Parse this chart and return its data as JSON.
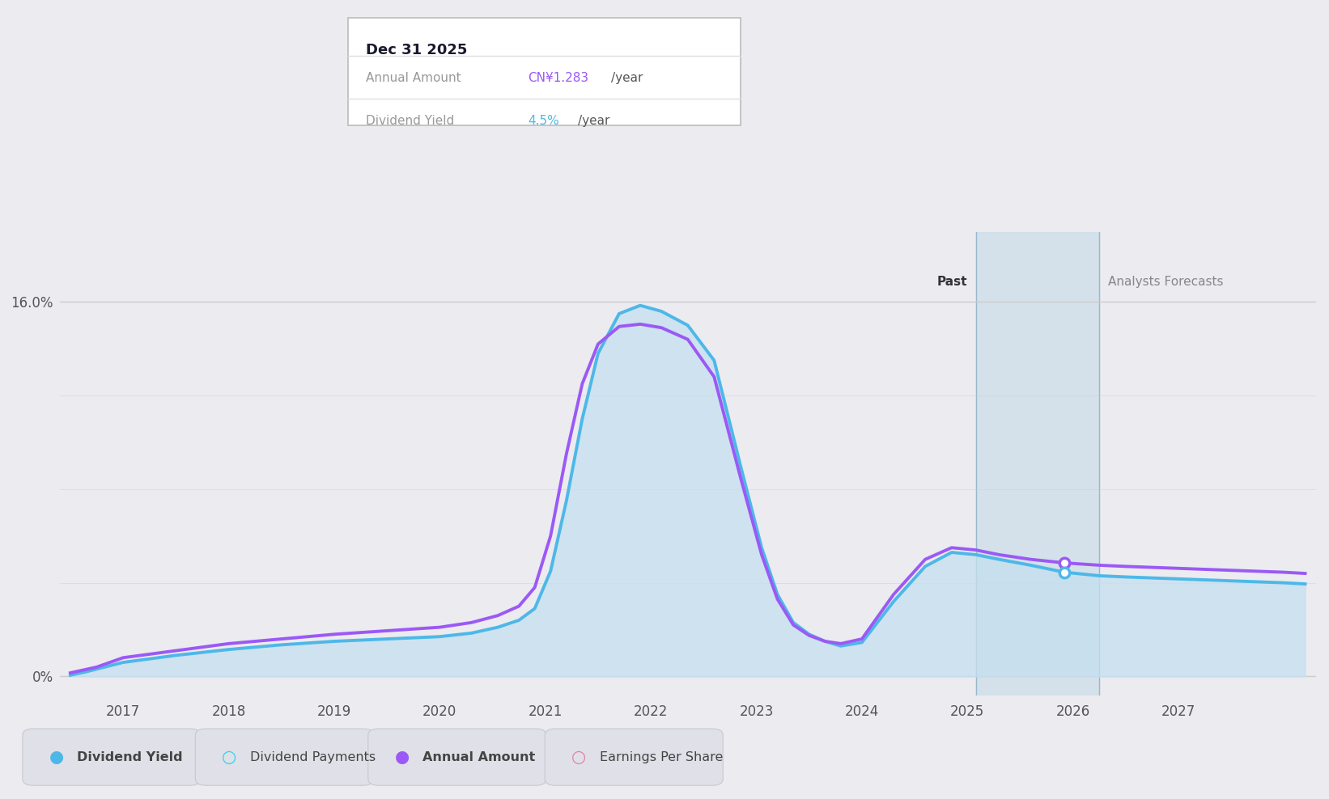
{
  "background_color": "#ebebf0",
  "plot_bg_color": "#ebebf0",
  "ytick_labels": [
    "0%",
    "16.0%"
  ],
  "xlim": [
    2016.4,
    2028.3
  ],
  "ylim": [
    -0.8,
    19.0
  ],
  "y_zero": 0.0,
  "y_top": 16.0,
  "forecast_region_start": 2025.08,
  "forecast_region_end": 2026.25,
  "past_label": "Past",
  "analysts_label": "Analysts Forecasts",
  "tooltip_title": "Dec 31 2025",
  "tooltip_annual_label": "Annual Amount",
  "tooltip_annual_value": "CN¥1.283",
  "tooltip_annual_suffix": "/year",
  "tooltip_yield_label": "Dividend Yield",
  "tooltip_yield_value": "4.5%",
  "tooltip_yield_suffix": "/year",
  "marker_x": 2025.92,
  "marker_y_purple": 4.85,
  "marker_y_blue": 4.45,
  "blue_color": "#4db8e8",
  "purple_color": "#9b59f5",
  "cyan_color": "#22d3ee",
  "pink_color": "#e879a0",
  "fill_color": "#c5dff0",
  "grid_color": "#cccccc",
  "dividend_yield_x": [
    2016.5,
    2016.65,
    2017.0,
    2017.5,
    2018.0,
    2018.5,
    2019.0,
    2019.5,
    2020.0,
    2020.3,
    2020.55,
    2020.75,
    2020.9,
    2021.05,
    2021.2,
    2021.35,
    2021.5,
    2021.7,
    2021.9,
    2022.1,
    2022.35,
    2022.6,
    2022.85,
    2023.05,
    2023.2,
    2023.35,
    2023.5,
    2023.65,
    2023.8,
    2024.0,
    2024.3,
    2024.6,
    2024.85,
    2025.08,
    2025.3,
    2025.6,
    2025.92,
    2026.25,
    2026.5,
    2026.8,
    2027.1,
    2027.4,
    2027.7,
    2028.0,
    2028.2
  ],
  "dividend_yield_y": [
    0.05,
    0.2,
    0.6,
    0.9,
    1.15,
    1.35,
    1.5,
    1.6,
    1.7,
    1.85,
    2.1,
    2.4,
    2.9,
    4.5,
    7.5,
    11.0,
    13.8,
    15.5,
    15.85,
    15.6,
    15.0,
    13.5,
    9.0,
    5.5,
    3.5,
    2.3,
    1.8,
    1.5,
    1.3,
    1.45,
    3.2,
    4.7,
    5.3,
    5.2,
    5.0,
    4.75,
    4.45,
    4.3,
    4.25,
    4.2,
    4.15,
    4.1,
    4.05,
    4.0,
    3.95
  ],
  "annual_amount_x": [
    2016.5,
    2016.75,
    2017.0,
    2017.5,
    2018.0,
    2018.5,
    2019.0,
    2019.5,
    2020.0,
    2020.3,
    2020.55,
    2020.75,
    2020.9,
    2021.05,
    2021.2,
    2021.35,
    2021.5,
    2021.7,
    2021.9,
    2022.1,
    2022.35,
    2022.6,
    2022.85,
    2023.05,
    2023.2,
    2023.35,
    2023.5,
    2023.65,
    2023.8,
    2024.0,
    2024.3,
    2024.6,
    2024.85,
    2025.08,
    2025.3,
    2025.6,
    2025.92,
    2026.25,
    2026.5,
    2026.8,
    2027.1,
    2027.4,
    2027.7,
    2028.0,
    2028.2
  ],
  "annual_amount_y": [
    0.15,
    0.4,
    0.8,
    1.1,
    1.4,
    1.6,
    1.8,
    1.95,
    2.1,
    2.3,
    2.6,
    3.0,
    3.8,
    6.0,
    9.5,
    12.5,
    14.2,
    14.95,
    15.05,
    14.9,
    14.4,
    12.8,
    8.5,
    5.2,
    3.3,
    2.2,
    1.75,
    1.5,
    1.4,
    1.6,
    3.5,
    5.0,
    5.5,
    5.4,
    5.2,
    5.0,
    4.85,
    4.75,
    4.7,
    4.65,
    4.6,
    4.55,
    4.5,
    4.45,
    4.4
  ],
  "xtick_positions": [
    2017,
    2018,
    2019,
    2020,
    2021,
    2022,
    2023,
    2024,
    2025,
    2026,
    2027
  ],
  "legend_items": [
    {
      "label": "Dividend Yield",
      "color": "#4db8e8",
      "filled": true
    },
    {
      "label": "Dividend Payments",
      "color": "#22d3ee",
      "filled": false
    },
    {
      "label": "Annual Amount",
      "color": "#9b59f5",
      "filled": true
    },
    {
      "label": "Earnings Per Share",
      "color": "#e879a0",
      "filled": false
    }
  ]
}
